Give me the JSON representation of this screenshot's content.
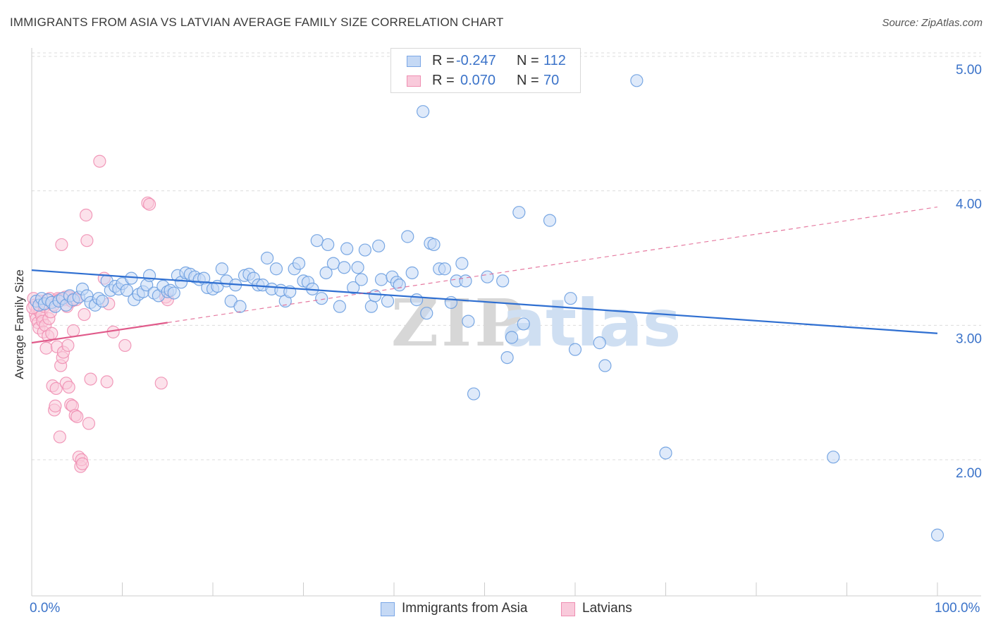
{
  "header": {
    "title": "IMMIGRANTS FROM ASIA VS LATVIAN AVERAGE FAMILY SIZE CORRELATION CHART",
    "source": "Source: ZipAtlas.com"
  },
  "watermark": {
    "zip": "ZIP",
    "atlas": "atlas"
  },
  "legend": {
    "rows": [
      {
        "r_label": "R = ",
        "r_value": "-0.247",
        "n_label": "N = ",
        "n_value": "112",
        "color": "#7ba7e6",
        "fill": "#c5d9f5"
      },
      {
        "r_label": "R = ",
        "r_value": "0.070",
        "n_label": "N = ",
        "n_value": "70",
        "color": "#ef8fb2",
        "fill": "#f9cadb"
      }
    ]
  },
  "chart_data": {
    "type": "scatter",
    "title": "IMMIGRANTS FROM ASIA VS LATVIAN AVERAGE FAMILY SIZE CORRELATION CHART",
    "xlabel": "",
    "ylabel": "Average Family Size",
    "xlim": [
      0,
      100
    ],
    "ylim": [
      1.0,
      5.0
    ],
    "x_tick_labels": [
      "0.0%",
      "100.0%"
    ],
    "y_ticks": [
      2.0,
      3.0,
      4.0,
      5.0
    ],
    "y_tick_labels": [
      "2.00",
      "3.00",
      "4.00",
      "5.00"
    ],
    "grid": true,
    "series": [
      {
        "name": "Immigrants from Asia",
        "color": "#6b9ee0",
        "fill": "#c5d9f5",
        "trend": {
          "x": [
            0,
            100
          ],
          "y": [
            3.41,
            2.94
          ],
          "style": "solid",
          "color": "#2f6fd1"
        },
        "points": [
          [
            0.5,
            3.18
          ],
          [
            0.8,
            3.15
          ],
          [
            1.1,
            3.2
          ],
          [
            1.4,
            3.16
          ],
          [
            1.8,
            3.19
          ],
          [
            2.2,
            3.17
          ],
          [
            2.6,
            3.14
          ],
          [
            3.0,
            3.18
          ],
          [
            3.4,
            3.2
          ],
          [
            3.8,
            3.15
          ],
          [
            4.2,
            3.22
          ],
          [
            4.6,
            3.19
          ],
          [
            5.2,
            3.21
          ],
          [
            5.6,
            3.27
          ],
          [
            6.1,
            3.22
          ],
          [
            6.5,
            3.17
          ],
          [
            7.0,
            3.15
          ],
          [
            7.4,
            3.2
          ],
          [
            7.8,
            3.18
          ],
          [
            8.3,
            3.33
          ],
          [
            8.7,
            3.26
          ],
          [
            9.2,
            3.29
          ],
          [
            9.6,
            3.27
          ],
          [
            10.0,
            3.31
          ],
          [
            10.5,
            3.26
          ],
          [
            11.0,
            3.35
          ],
          [
            11.3,
            3.19
          ],
          [
            11.8,
            3.23
          ],
          [
            12.3,
            3.25
          ],
          [
            12.7,
            3.3
          ],
          [
            13.0,
            3.37
          ],
          [
            13.5,
            3.24
          ],
          [
            14.0,
            3.22
          ],
          [
            14.5,
            3.29
          ],
          [
            15.0,
            3.25
          ],
          [
            15.3,
            3.26
          ],
          [
            15.7,
            3.24
          ],
          [
            16.1,
            3.37
          ],
          [
            16.5,
            3.32
          ],
          [
            17.0,
            3.39
          ],
          [
            17.5,
            3.38
          ],
          [
            18.0,
            3.36
          ],
          [
            18.5,
            3.34
          ],
          [
            19.0,
            3.35
          ],
          [
            19.4,
            3.28
          ],
          [
            20.0,
            3.27
          ],
          [
            20.5,
            3.29
          ],
          [
            21.0,
            3.42
          ],
          [
            21.5,
            3.33
          ],
          [
            22.0,
            3.18
          ],
          [
            22.5,
            3.3
          ],
          [
            23.0,
            3.14
          ],
          [
            23.5,
            3.37
          ],
          [
            24.0,
            3.38
          ],
          [
            24.5,
            3.35
          ],
          [
            25.0,
            3.3
          ],
          [
            25.5,
            3.3
          ],
          [
            26.0,
            3.5
          ],
          [
            26.5,
            3.27
          ],
          [
            27.0,
            3.42
          ],
          [
            27.5,
            3.26
          ],
          [
            28.0,
            3.18
          ],
          [
            28.5,
            3.25
          ],
          [
            29.0,
            3.42
          ],
          [
            29.5,
            3.46
          ],
          [
            30.0,
            3.33
          ],
          [
            30.5,
            3.32
          ],
          [
            31.0,
            3.27
          ],
          [
            31.5,
            3.63
          ],
          [
            32.0,
            3.2
          ],
          [
            32.5,
            3.39
          ],
          [
            32.7,
            3.6
          ],
          [
            33.3,
            3.46
          ],
          [
            34.0,
            3.14
          ],
          [
            34.5,
            3.43
          ],
          [
            34.8,
            3.57
          ],
          [
            35.5,
            3.28
          ],
          [
            36.0,
            3.43
          ],
          [
            36.4,
            3.34
          ],
          [
            36.8,
            3.56
          ],
          [
            37.5,
            3.14
          ],
          [
            37.9,
            3.22
          ],
          [
            38.3,
            3.59
          ],
          [
            38.6,
            3.34
          ],
          [
            39.3,
            3.18
          ],
          [
            39.8,
            3.36
          ],
          [
            40.3,
            3.32
          ],
          [
            40.6,
            3.3
          ],
          [
            41.5,
            3.66
          ],
          [
            42.0,
            3.39
          ],
          [
            42.5,
            3.19
          ],
          [
            43.2,
            4.59
          ],
          [
            43.6,
            3.09
          ],
          [
            44.0,
            3.61
          ],
          [
            44.4,
            3.6
          ],
          [
            45.0,
            3.42
          ],
          [
            45.6,
            3.42
          ],
          [
            46.3,
            3.17
          ],
          [
            46.9,
            3.33
          ],
          [
            47.5,
            3.46
          ],
          [
            47.9,
            3.33
          ],
          [
            48.2,
            3.03
          ],
          [
            48.8,
            2.49
          ],
          [
            50.3,
            3.36
          ],
          [
            52.0,
            3.33
          ],
          [
            52.5,
            2.76
          ],
          [
            53.0,
            2.91
          ],
          [
            53.8,
            3.84
          ],
          [
            54.3,
            3.01
          ],
          [
            57.2,
            3.78
          ],
          [
            59.5,
            3.2
          ],
          [
            60.0,
            2.82
          ],
          [
            62.7,
            2.87
          ],
          [
            63.3,
            2.7
          ],
          [
            66.8,
            4.82
          ],
          [
            70.0,
            2.05
          ],
          [
            88.5,
            2.02
          ],
          [
            100.0,
            1.44
          ]
        ]
      },
      {
        "name": "Latvians",
        "color": "#ef8fb2",
        "fill": "#f9cadb",
        "trend": {
          "x": [
            0,
            15
          ],
          "y": [
            2.87,
            3.02
          ],
          "style": "solid",
          "color": "#e05a8a",
          "ext": {
            "x": [
              15,
              100
            ],
            "y": [
              3.02,
              3.88
            ],
            "style": "dashed"
          }
        },
        "points": [
          [
            0.2,
            3.2
          ],
          [
            0.3,
            3.15
          ],
          [
            0.4,
            3.08
          ],
          [
            0.5,
            3.05
          ],
          [
            0.6,
            3.12
          ],
          [
            0.7,
            3.02
          ],
          [
            0.8,
            2.98
          ],
          [
            0.9,
            3.1
          ],
          [
            1.0,
            3.18
          ],
          [
            1.1,
            3.07
          ],
          [
            1.2,
            3.03
          ],
          [
            1.3,
            2.95
          ],
          [
            1.4,
            3.14
          ],
          [
            1.5,
            3.0
          ],
          [
            1.6,
            2.83
          ],
          [
            1.7,
            3.19
          ],
          [
            1.8,
            2.92
          ],
          [
            1.9,
            3.05
          ],
          [
            2.0,
            3.2
          ],
          [
            2.1,
            3.1
          ],
          [
            2.2,
            2.94
          ],
          [
            2.3,
            2.55
          ],
          [
            2.4,
            3.15
          ],
          [
            2.5,
            2.37
          ],
          [
            2.6,
            2.4
          ],
          [
            2.7,
            2.53
          ],
          [
            2.8,
            2.84
          ],
          [
            2.9,
            3.2
          ],
          [
            3.0,
            3.19
          ],
          [
            3.1,
            2.17
          ],
          [
            3.2,
            2.7
          ],
          [
            3.3,
            3.6
          ],
          [
            3.4,
            2.76
          ],
          [
            3.5,
            2.8
          ],
          [
            3.6,
            3.19
          ],
          [
            3.7,
            3.21
          ],
          [
            3.8,
            2.57
          ],
          [
            3.9,
            3.14
          ],
          [
            4.0,
            2.85
          ],
          [
            4.1,
            2.54
          ],
          [
            4.2,
            3.21
          ],
          [
            4.3,
            2.41
          ],
          [
            4.4,
            3.18
          ],
          [
            4.5,
            2.4
          ],
          [
            4.6,
            2.96
          ],
          [
            4.7,
            3.2
          ],
          [
            4.8,
            2.33
          ],
          [
            4.9,
            3.19
          ],
          [
            5.0,
            2.32
          ],
          [
            5.2,
            2.02
          ],
          [
            5.4,
            1.95
          ],
          [
            5.5,
            2.0
          ],
          [
            5.6,
            1.97
          ],
          [
            5.8,
            3.08
          ],
          [
            6.0,
            3.82
          ],
          [
            6.1,
            3.63
          ],
          [
            6.3,
            2.27
          ],
          [
            6.5,
            2.6
          ],
          [
            7.5,
            4.22
          ],
          [
            8.0,
            3.35
          ],
          [
            8.3,
            2.58
          ],
          [
            8.5,
            3.16
          ],
          [
            9.0,
            2.95
          ],
          [
            10.3,
            2.85
          ],
          [
            12.8,
            3.91
          ],
          [
            13.0,
            3.9
          ],
          [
            14.3,
            2.57
          ],
          [
            14.8,
            3.21
          ],
          [
            15.0,
            3.19
          ],
          [
            0.1,
            3.13
          ]
        ]
      }
    ]
  }
}
